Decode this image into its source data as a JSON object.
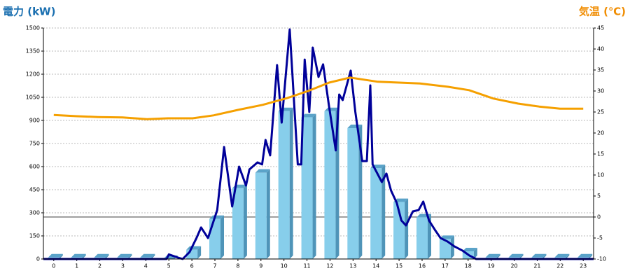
{
  "chart_data": {
    "type": "combo",
    "y_label": "電力 (kW)",
    "y2_label": "気温 (℃)",
    "xlim": [
      -0.45,
      23.45
    ],
    "xticks": [
      0,
      1,
      2,
      3,
      4,
      5,
      6,
      7,
      8,
      9,
      10,
      11,
      12,
      13,
      14,
      15,
      16,
      17,
      18,
      19,
      20,
      21,
      22,
      23
    ],
    "ylim": [
      0,
      1500
    ],
    "yticks": [
      0,
      150,
      300,
      450,
      600,
      750,
      900,
      1050,
      1200,
      1350,
      1500
    ],
    "y2lim": [
      -10,
      45
    ],
    "y2ticks": [
      -10,
      -5,
      0,
      5,
      10,
      15,
      20,
      25,
      30,
      35,
      40,
      45
    ],
    "grid": true,
    "series": [
      {
        "type": "bar",
        "color": "#87ceeb",
        "x": [
          0,
          1,
          2,
          3,
          4,
          5,
          6,
          7,
          8,
          9,
          10,
          11,
          12,
          13,
          14,
          15,
          16,
          17,
          18,
          19,
          20,
          21,
          22,
          23
        ],
        "values": [
          10,
          10,
          10,
          10,
          10,
          0,
          60,
          260,
          460,
          560,
          960,
          920,
          960,
          850,
          590,
          370,
          270,
          130,
          50,
          10,
          10,
          10,
          10,
          10
        ]
      },
      {
        "type": "line",
        "color": "#000099",
        "x": [
          -0.45,
          4.9,
          5,
          5.4,
          5.6,
          5.9,
          6.2,
          6.4,
          6.7,
          7.1,
          7.4,
          7.75,
          8.05,
          8.35,
          8.5,
          8.85,
          9.05,
          9.2,
          9.4,
          9.7,
          9.9,
          10.25,
          10.6,
          10.75,
          10.9,
          11.1,
          11.25,
          11.5,
          11.7,
          11.95,
          12.25,
          12.4,
          12.55,
          12.9,
          13.1,
          13.4,
          13.6,
          13.75,
          13.85,
          14.25,
          14.45,
          14.65,
          14.9,
          15.1,
          15.3,
          15.6,
          15.85,
          16.05,
          16.3,
          16.55,
          16.8,
          17.1,
          17.4,
          17.75,
          18.05,
          18.35,
          23.45
        ],
        "values": [
          0,
          0,
          30,
          9,
          0,
          45,
          136,
          205,
          136,
          318,
          727,
          341,
          600,
          477,
          582,
          627,
          614,
          773,
          673,
          1259,
          886,
          1491,
          614,
          614,
          1295,
          955,
          1373,
          1182,
          1264,
          1000,
          705,
          1068,
          1032,
          1223,
          955,
          636,
          636,
          1127,
          614,
          500,
          555,
          445,
          364,
          250,
          218,
          309,
          318,
          373,
          250,
          191,
          136,
          114,
          82,
          55,
          23,
          0,
          0
        ]
      },
      {
        "type": "line",
        "color": "#f5a000",
        "axis": "y2",
        "x": [
          0,
          1,
          1.93,
          2.99,
          4.05,
          4.96,
          6.03,
          6.94,
          8,
          9.07,
          10.13,
          11.05,
          11.96,
          12.87,
          14.08,
          15,
          15.91,
          17.13,
          18.04,
          19.1,
          20.17,
          21.08,
          21.99,
          23
        ],
        "values": [
          24.3,
          24,
          23.8,
          23.7,
          23.3,
          23.5,
          23.5,
          24.2,
          25.5,
          26.7,
          28.3,
          30,
          32,
          33.2,
          32.2,
          32,
          31.8,
          31,
          30.2,
          28.2,
          27,
          26.3,
          25.8,
          25.8
        ]
      }
    ]
  }
}
